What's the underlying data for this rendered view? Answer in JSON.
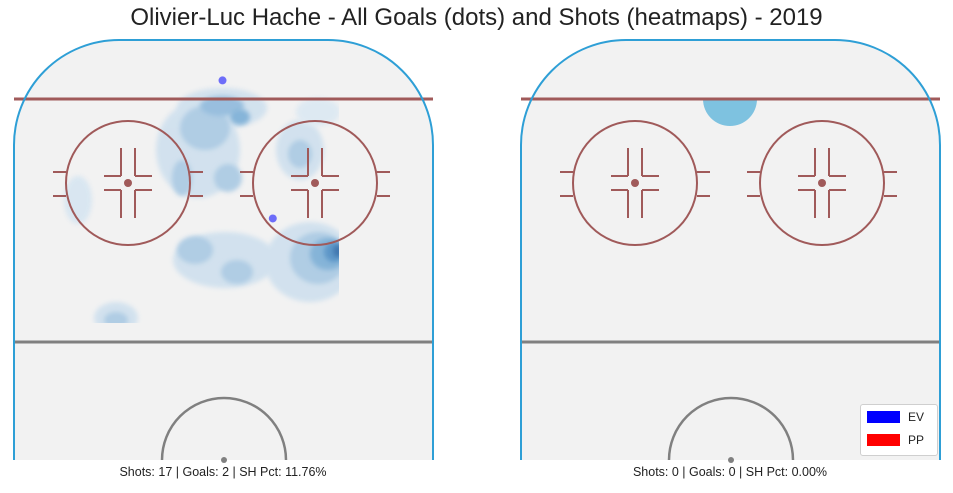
{
  "title": "Olivier-Luc Hache - All Goals (dots) and Shots (heatmaps) - 2019",
  "chart_data": [
    {
      "type": "heatmap",
      "panel": "left",
      "caption": "Shots: 17 | Goals: 2 | SH Pct: 11.76%",
      "shots": 17,
      "goals": 2,
      "sh_pct": 11.76,
      "goal_dots": [
        {
          "x": -0.2,
          "y": 77,
          "strength": "EV"
        },
        {
          "x": 10,
          "y": 49,
          "strength": "EV"
        }
      ]
    },
    {
      "type": "heatmap",
      "panel": "right",
      "caption": "Shots: 0 | Goals: 0 | SH Pct: 0.00%",
      "shots": 0,
      "goals": 0,
      "sh_pct": 0.0,
      "goal_dots": []
    }
  ],
  "legend": [
    {
      "label": "EV",
      "color": "#0000ff"
    },
    {
      "label": "PP",
      "color": "#ff0000"
    }
  ],
  "colors": {
    "boards": "#2e9fd6",
    "red_line": "#a05a5a",
    "center_line": "#808080",
    "ice": "#f2f2f2",
    "heat": "#4a90c2"
  }
}
